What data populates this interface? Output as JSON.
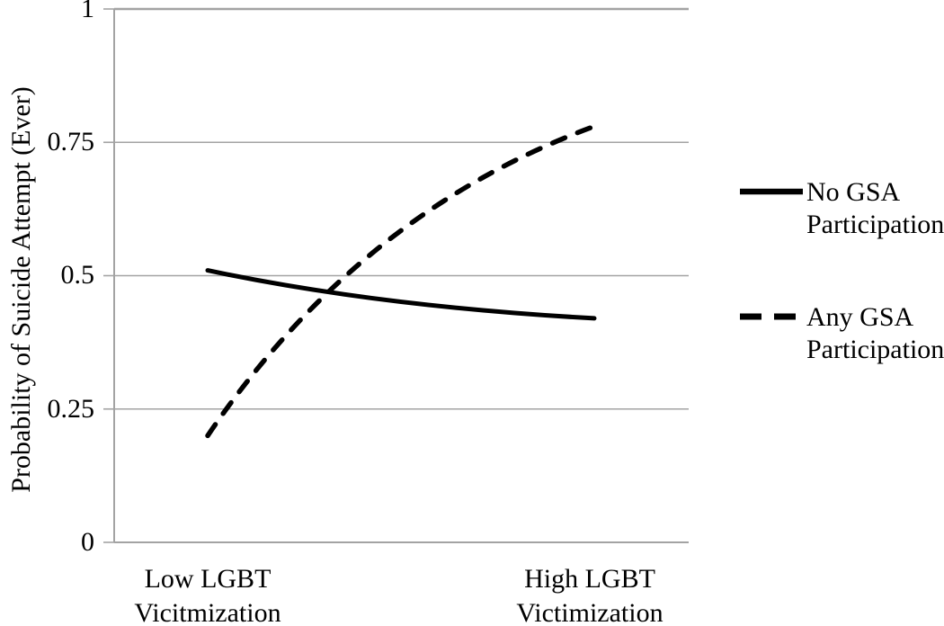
{
  "chart_data": {
    "type": "line",
    "title": "",
    "xlabel": "",
    "ylabel": "Probability of Suicide Attempt (Ever)",
    "categories": [
      "Low LGBT Vicitmization",
      "High LGBT Victimization"
    ],
    "category_lines": [
      {
        "line1": "Low LGBT",
        "line2": "Vicitmization"
      },
      {
        "line1": "High LGBT",
        "line2": "Victimization"
      }
    ],
    "yticks": [
      "1",
      "0.75",
      "0.5",
      "0.25",
      "0"
    ],
    "ytick_values": [
      1,
      0.75,
      0.5,
      0.25,
      0
    ],
    "ylim": [
      0,
      1
    ],
    "grid": "horizontal",
    "legend_position": "right",
    "series": [
      {
        "name": "No GSA Participation",
        "style": "solid",
        "values": [
          0.51,
          0.42
        ]
      },
      {
        "name": "Any GSA Participation",
        "style": "dashed",
        "values": [
          0.2,
          0.78
        ]
      }
    ],
    "colors": {
      "line": "#000000",
      "grid": "#a3a3a3",
      "text": "#000000",
      "background": "#ffffff"
    }
  }
}
